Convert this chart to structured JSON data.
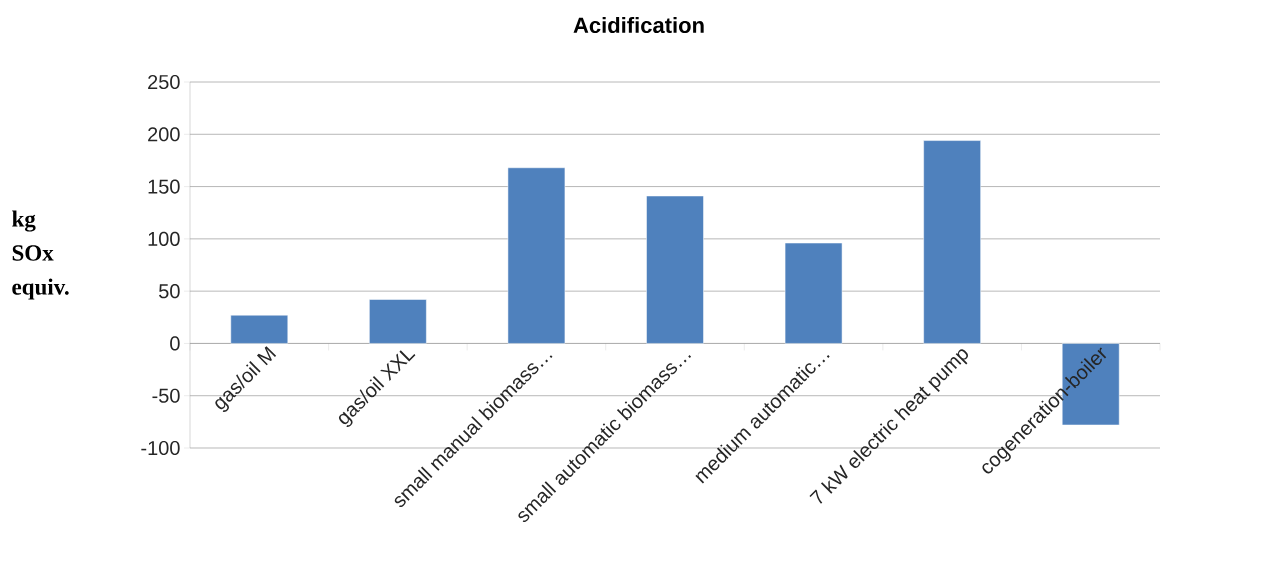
{
  "chart_data": {
    "type": "bar",
    "title": "Acidification",
    "ylabel": "kg SOx equiv.",
    "categories": [
      "gas/oil M",
      "gas/oil XXL",
      "small manual biomass…",
      "small automatic biomass…",
      "medium automatic…",
      "7 kW electric heat pump",
      "cogeneration-boiler"
    ],
    "values": [
      27,
      42,
      168,
      141,
      96,
      194,
      -78
    ],
    "color": "#4f81bd",
    "ylim": [
      -100,
      250
    ],
    "yticks": [
      -100,
      -50,
      0,
      50,
      100,
      150,
      200,
      250
    ],
    "grid": "y"
  }
}
